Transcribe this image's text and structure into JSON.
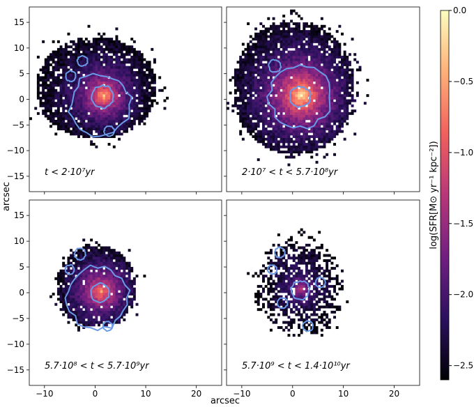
{
  "chart_data": {
    "type": "heatmap",
    "xlabel": "arcsec",
    "ylabel": "arcsec",
    "xlim": [
      -13,
      25
    ],
    "ylim": [
      -18,
      18
    ],
    "xticks": [
      -10,
      0,
      10,
      20
    ],
    "yticks": [
      -15,
      -10,
      -5,
      0,
      5,
      10,
      15
    ],
    "colorbar": {
      "label": "log(SFR[M⊙ yr⁻¹ kpc⁻²])",
      "range": [
        -2.6,
        0.0
      ],
      "ticks": [
        0.0,
        -0.5,
        -1.0,
        -1.5,
        -2.0,
        -2.5
      ],
      "tick_labels": [
        "0.0",
        "−0.5",
        "−1.0",
        "−1.5",
        "−2.0",
        "−2.5"
      ],
      "colormap": "magma",
      "stops": [
        "#000004",
        "#2c115f",
        "#721f81",
        "#b73779",
        "#f1605d",
        "#feb078",
        "#fcfdbf"
      ]
    },
    "contour_color": "#6a9ae8",
    "panels": [
      {
        "label": "t < 2·10⁷yr",
        "region": {
          "cx": 0,
          "cy": 2,
          "rx": 12,
          "ry": 10
        },
        "peak": {
          "x": 1.5,
          "y": 0.5,
          "value": -0.6
        },
        "contours": [
          {
            "x": 1.5,
            "y": 0.5,
            "r": 2.2
          },
          {
            "x": 1.0,
            "y": -1.0,
            "r": 6.0
          },
          {
            "x": -2.5,
            "y": 7.5,
            "r": 1.0
          },
          {
            "x": -4.8,
            "y": 4.5,
            "r": 1.0
          },
          {
            "x": 2.8,
            "y": -6.2,
            "r": 1.0
          }
        ]
      },
      {
        "label": "2·10⁷ < t < 5.7·10⁸yr",
        "region": {
          "cx": 0,
          "cy": 2,
          "rx": 12,
          "ry": 13
        },
        "peak": {
          "x": 1.5,
          "y": 0.5,
          "value": -0.3
        },
        "contours": [
          {
            "x": 1.5,
            "y": 0.5,
            "r": 2.0
          },
          {
            "x": 1.5,
            "y": 0.5,
            "r": 6.0
          },
          {
            "x": -3.5,
            "y": 6.5,
            "r": 1.2
          }
        ]
      },
      {
        "label": "5.7·10⁸ < t < 5.7·10⁹yr",
        "region": {
          "cx": 0,
          "cy": 1,
          "rx": 8,
          "ry": 8
        },
        "peak": {
          "x": 1.0,
          "y": 0.0,
          "value": -0.8
        },
        "contours": [
          {
            "x": 1.0,
            "y": 0.0,
            "r": 1.8
          },
          {
            "x": 0.5,
            "y": -1.0,
            "r": 6.0
          },
          {
            "x": -3.0,
            "y": 7.5,
            "r": 1.1
          },
          {
            "x": -5.0,
            "y": 4.5,
            "r": 0.9
          },
          {
            "x": 2.5,
            "y": -6.5,
            "r": 0.9
          }
        ]
      },
      {
        "label": "5.7·10⁹ < t < 1.4·10¹⁰yr",
        "region": {
          "cx": 1,
          "cy": 1,
          "rx": 9,
          "ry": 10
        },
        "peak": {
          "x": 1.5,
          "y": 0.5,
          "value": -1.5
        },
        "contours": [
          {
            "x": 1.5,
            "y": 0.5,
            "r": 1.8
          },
          {
            "x": -2.5,
            "y": 7.8,
            "r": 1.0
          },
          {
            "x": -4.0,
            "y": 4.5,
            "r": 0.9
          },
          {
            "x": 3.0,
            "y": -6.5,
            "r": 1.0
          },
          {
            "x": -2.0,
            "y": -2.0,
            "r": 1.0
          },
          {
            "x": 5.5,
            "y": 2.0,
            "r": 1.0
          }
        ]
      }
    ]
  }
}
